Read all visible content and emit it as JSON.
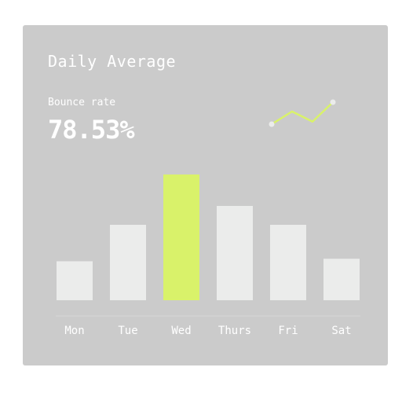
{
  "card": {
    "title": "Daily Average",
    "metric_label": "Bounce rate",
    "metric_value": "78.53%"
  },
  "colors": {
    "card_bg": "#cbcbcb",
    "bar": "#ebeceb",
    "bar_highlight": "#d9f26a",
    "text": "#ffffff",
    "spark_line": "#d9f26a",
    "spark_dot": "#ebeceb"
  },
  "sparkline": {
    "values": [
      0,
      1.5,
      0.3,
      2.6
    ]
  },
  "chart_data": {
    "type": "bar",
    "categories": [
      "Mon",
      "Tue",
      "Wed",
      "Thurs",
      "Fri",
      "Sat"
    ],
    "values": [
      31,
      60,
      100,
      75,
      60,
      33
    ],
    "highlight_index": 2,
    "ylim": [
      0,
      100
    ],
    "grid": false,
    "legend": "none"
  }
}
